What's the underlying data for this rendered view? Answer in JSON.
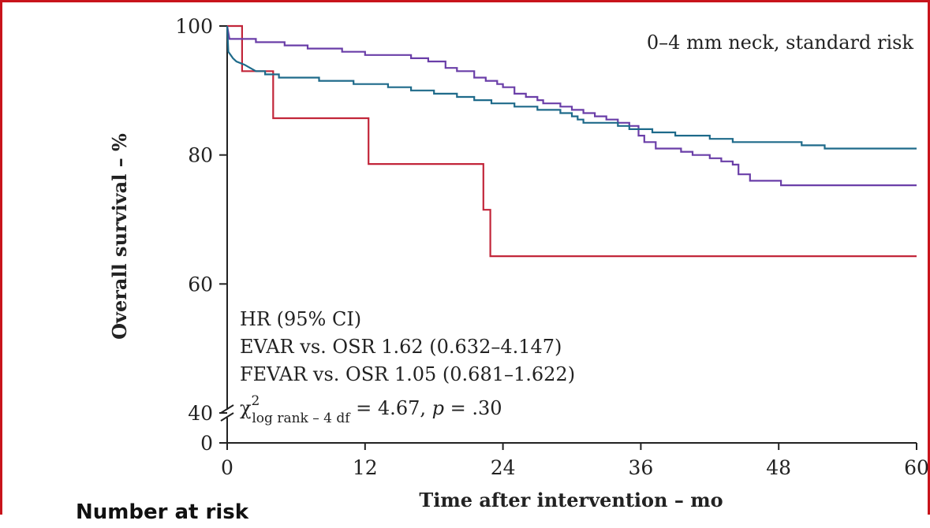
{
  "chart_data": {
    "type": "line",
    "step": true,
    "title": "",
    "subtitle": "0–4 mm neck, standard risk",
    "xlabel": "Time after intervention – mo",
    "ylabel": "Overall survival – %",
    "xlim": [
      0,
      60
    ],
    "ylim": [
      40,
      100
    ],
    "y_axis_break": {
      "from": 0,
      "to": 40
    },
    "x_ticks": [
      0,
      12,
      24,
      36,
      48,
      60
    ],
    "y_ticks": [
      100,
      80,
      60,
      40,
      0
    ],
    "grid": false,
    "legend": "none",
    "annotations": [
      "HR (95% CI)",
      "EVAR vs. OSR 1.62 (0.632–4.147)",
      "FEVAR vs. OSR 1.05 (0.681–1.622)"
    ],
    "stat": {
      "symbol": "χ",
      "superscript": "2",
      "subscript": "log rank – 4 df",
      "rest": " = 4.67, ",
      "p_symbol": "p",
      "p_value": " = .30"
    },
    "series": [
      {
        "color": "#c2263a",
        "points": [
          [
            0,
            100
          ],
          [
            1.3,
            100
          ],
          [
            1.3,
            93
          ],
          [
            4,
            93
          ],
          [
            4,
            85.7
          ],
          [
            12.3,
            85.7
          ],
          [
            12.3,
            78.6
          ],
          [
            22.3,
            78.6
          ],
          [
            22.3,
            71.5
          ],
          [
            22.9,
            71.5
          ],
          [
            22.9,
            64.3
          ],
          [
            60,
            64.3
          ]
        ]
      },
      {
        "color": "#6a3ea8",
        "points": [
          [
            0,
            100
          ],
          [
            0.2,
            98
          ],
          [
            2.5,
            98
          ],
          [
            2.5,
            97.5
          ],
          [
            5,
            97.5
          ],
          [
            5,
            97
          ],
          [
            7,
            97
          ],
          [
            7,
            96.5
          ],
          [
            10,
            96.5
          ],
          [
            10,
            96
          ],
          [
            12,
            96
          ],
          [
            12,
            95.5
          ],
          [
            16,
            95.5
          ],
          [
            16,
            95
          ],
          [
            17.5,
            95
          ],
          [
            17.5,
            94.5
          ],
          [
            19,
            94.5
          ],
          [
            19,
            93.5
          ],
          [
            20,
            93.5
          ],
          [
            20,
            93
          ],
          [
            21.5,
            93
          ],
          [
            21.5,
            92
          ],
          [
            22.5,
            92
          ],
          [
            22.5,
            91.5
          ],
          [
            23.5,
            91.5
          ],
          [
            23.5,
            91
          ],
          [
            24,
            91
          ],
          [
            24,
            90.5
          ],
          [
            25,
            90.5
          ],
          [
            25,
            89.5
          ],
          [
            26,
            89.5
          ],
          [
            26,
            89
          ],
          [
            27,
            89
          ],
          [
            27,
            88.5
          ],
          [
            27.5,
            88.5
          ],
          [
            27.5,
            88
          ],
          [
            29,
            88
          ],
          [
            29,
            87.5
          ],
          [
            30,
            87.5
          ],
          [
            30,
            87
          ],
          [
            31,
            87
          ],
          [
            31,
            86.5
          ],
          [
            32,
            86.5
          ],
          [
            32,
            86
          ],
          [
            33,
            86
          ],
          [
            33,
            85.5
          ],
          [
            34,
            85.5
          ],
          [
            34,
            85
          ],
          [
            35,
            85
          ],
          [
            35,
            84.5
          ],
          [
            35.8,
            84.5
          ],
          [
            35.8,
            83
          ],
          [
            36.3,
            83
          ],
          [
            36.3,
            82
          ],
          [
            37.3,
            82
          ],
          [
            37.3,
            81
          ],
          [
            39.5,
            81
          ],
          [
            39.5,
            80.5
          ],
          [
            40.5,
            80.5
          ],
          [
            40.5,
            80
          ],
          [
            42,
            80
          ],
          [
            42,
            79.5
          ],
          [
            43,
            79.5
          ],
          [
            43,
            79
          ],
          [
            44,
            79
          ],
          [
            44,
            78.5
          ],
          [
            44.5,
            78.5
          ],
          [
            44.5,
            77
          ],
          [
            45.5,
            77
          ],
          [
            45.5,
            76
          ],
          [
            48.2,
            76
          ],
          [
            48.2,
            75.3
          ],
          [
            60,
            75.3
          ]
        ]
      },
      {
        "color": "#1e6a8a",
        "points": [
          [
            0,
            100
          ],
          [
            0.1,
            96
          ],
          [
            0.3,
            95.5
          ],
          [
            0.5,
            95
          ],
          [
            0.8,
            94.5
          ],
          [
            1.5,
            94
          ],
          [
            2,
            93.5
          ],
          [
            2.5,
            93
          ],
          [
            3.3,
            93
          ],
          [
            3.3,
            92.5
          ],
          [
            4.5,
            92.5
          ],
          [
            4.5,
            92
          ],
          [
            8,
            92
          ],
          [
            8,
            91.5
          ],
          [
            11,
            91.5
          ],
          [
            11,
            91
          ],
          [
            14,
            91
          ],
          [
            14,
            90.5
          ],
          [
            16,
            90.5
          ],
          [
            16,
            90
          ],
          [
            18,
            90
          ],
          [
            18,
            89.5
          ],
          [
            20,
            89.5
          ],
          [
            20,
            89
          ],
          [
            21.5,
            89
          ],
          [
            21.5,
            88.5
          ],
          [
            23,
            88.5
          ],
          [
            23,
            88
          ],
          [
            25,
            88
          ],
          [
            25,
            87.5
          ],
          [
            27,
            87.5
          ],
          [
            27,
            87
          ],
          [
            29,
            87
          ],
          [
            29,
            86.5
          ],
          [
            30,
            86.5
          ],
          [
            30,
            86
          ],
          [
            30.5,
            86
          ],
          [
            30.5,
            85.5
          ],
          [
            31,
            85.5
          ],
          [
            31,
            85
          ],
          [
            34,
            85
          ],
          [
            34,
            84.5
          ],
          [
            35,
            84.5
          ],
          [
            35,
            84
          ],
          [
            37,
            84
          ],
          [
            37,
            83.5
          ],
          [
            39,
            83.5
          ],
          [
            39,
            83
          ],
          [
            42,
            83
          ],
          [
            42,
            82.5
          ],
          [
            44,
            82.5
          ],
          [
            44,
            82
          ],
          [
            50,
            82
          ],
          [
            50,
            81.5
          ],
          [
            52,
            81.5
          ],
          [
            52,
            81
          ],
          [
            60,
            81
          ]
        ]
      }
    ]
  },
  "number_at_risk": {
    "label": "Number at risk"
  }
}
